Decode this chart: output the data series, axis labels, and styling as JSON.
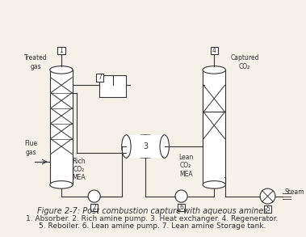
{
  "title": "Figure 2-7: Post combustion capture with aqueous amines",
  "caption_lines": [
    "1. Absorber. 2. Rich amine pump. 3. Heat exchanger. 4. Regenerator.",
    "5. Reboiler. 6. Lean amine pump. 7. Lean amine Storage tank."
  ],
  "bg_color": "#f5f0e8",
  "line_color": "#333333",
  "title_fontsize": 7,
  "caption_fontsize": 6.5
}
